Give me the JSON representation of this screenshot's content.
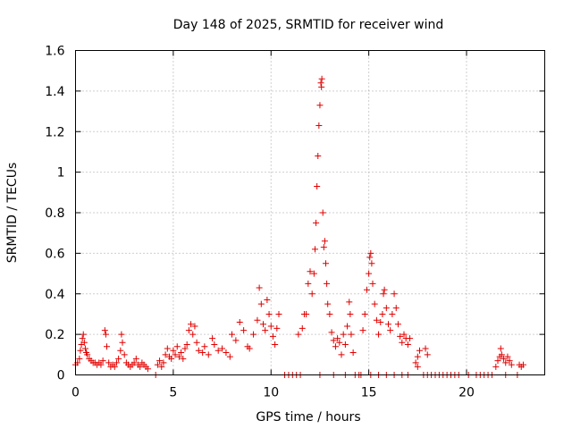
{
  "chart_data": {
    "type": "scatter",
    "title": "Day 148 of 2025, SRMTID for receiver wind",
    "xlabel": "GPS time / hours",
    "ylabel": "SRMTID / TECUs",
    "xlim": [
      0,
      24
    ],
    "ylim": [
      0,
      1.6
    ],
    "xticks": [
      0,
      5,
      10,
      15,
      20
    ],
    "xtick_labels": [
      "0",
      "5",
      "10",
      "15",
      "20"
    ],
    "yticks": [
      0,
      0.2,
      0.4,
      0.6,
      0.8,
      1.0,
      1.2,
      1.4,
      1.6
    ],
    "ytick_labels": [
      "0",
      "0.2",
      "0.4",
      "0.6",
      "0.8",
      "1",
      "1.2",
      "1.4",
      "1.6"
    ],
    "grid": true,
    "marker": "+",
    "color": "#e00000",
    "series": [
      {
        "name": "SRMTID",
        "points": [
          [
            0.0,
            0.05
          ],
          [
            0.1,
            0.06
          ],
          [
            0.2,
            0.08
          ],
          [
            0.25,
            0.12
          ],
          [
            0.3,
            0.15
          ],
          [
            0.35,
            0.18
          ],
          [
            0.4,
            0.2
          ],
          [
            0.45,
            0.16
          ],
          [
            0.5,
            0.13
          ],
          [
            0.55,
            0.11
          ],
          [
            0.6,
            0.1
          ],
          [
            0.7,
            0.08
          ],
          [
            0.8,
            0.07
          ],
          [
            0.9,
            0.06
          ],
          [
            1.0,
            0.06
          ],
          [
            1.1,
            0.05
          ],
          [
            1.2,
            0.06
          ],
          [
            1.3,
            0.05
          ],
          [
            1.4,
            0.07
          ],
          [
            1.5,
            0.22
          ],
          [
            1.55,
            0.2
          ],
          [
            1.6,
            0.14
          ],
          [
            1.7,
            0.06
          ],
          [
            1.8,
            0.04
          ],
          [
            1.9,
            0.05
          ],
          [
            2.0,
            0.04
          ],
          [
            2.1,
            0.06
          ],
          [
            2.2,
            0.08
          ],
          [
            2.3,
            0.12
          ],
          [
            2.35,
            0.2
          ],
          [
            2.4,
            0.16
          ],
          [
            2.5,
            0.1
          ],
          [
            2.6,
            0.06
          ],
          [
            2.7,
            0.05
          ],
          [
            2.8,
            0.04
          ],
          [
            2.9,
            0.05
          ],
          [
            3.0,
            0.06
          ],
          [
            3.1,
            0.08
          ],
          [
            3.2,
            0.05
          ],
          [
            3.3,
            0.04
          ],
          [
            3.4,
            0.06
          ],
          [
            3.5,
            0.05
          ],
          [
            3.6,
            0.04
          ],
          [
            3.7,
            0.03
          ],
          [
            4.1,
            0.0
          ],
          [
            4.2,
            0.05
          ],
          [
            4.3,
            0.07
          ],
          [
            4.4,
            0.04
          ],
          [
            4.5,
            0.06
          ],
          [
            4.6,
            0.1
          ],
          [
            4.7,
            0.13
          ],
          [
            4.8,
            0.09
          ],
          [
            4.9,
            0.08
          ],
          [
            5.0,
            0.12
          ],
          [
            5.1,
            0.1
          ],
          [
            5.2,
            0.14
          ],
          [
            5.3,
            0.09
          ],
          [
            5.4,
            0.11
          ],
          [
            5.5,
            0.08
          ],
          [
            5.6,
            0.13
          ],
          [
            5.7,
            0.15
          ],
          [
            5.8,
            0.22
          ],
          [
            5.9,
            0.25
          ],
          [
            6.0,
            0.2
          ],
          [
            6.1,
            0.24
          ],
          [
            6.2,
            0.16
          ],
          [
            6.3,
            0.12
          ],
          [
            6.5,
            0.11
          ],
          [
            6.6,
            0.14
          ],
          [
            6.8,
            0.1
          ],
          [
            7.0,
            0.18
          ],
          [
            7.1,
            0.15
          ],
          [
            7.3,
            0.12
          ],
          [
            7.5,
            0.13
          ],
          [
            7.7,
            0.11
          ],
          [
            7.9,
            0.09
          ],
          [
            8.0,
            0.2
          ],
          [
            8.2,
            0.17
          ],
          [
            8.4,
            0.26
          ],
          [
            8.6,
            0.22
          ],
          [
            8.8,
            0.14
          ],
          [
            8.9,
            0.13
          ],
          [
            9.1,
            0.2
          ],
          [
            9.3,
            0.27
          ],
          [
            9.4,
            0.43
          ],
          [
            9.5,
            0.35
          ],
          [
            9.6,
            0.25
          ],
          [
            9.7,
            0.22
          ],
          [
            9.8,
            0.37
          ],
          [
            9.9,
            0.3
          ],
          [
            10.0,
            0.24
          ],
          [
            10.1,
            0.19
          ],
          [
            10.2,
            0.15
          ],
          [
            10.3,
            0.23
          ],
          [
            10.4,
            0.3
          ],
          [
            10.7,
            0.0
          ],
          [
            10.9,
            0.0
          ],
          [
            11.1,
            0.0
          ],
          [
            11.3,
            0.0
          ],
          [
            11.5,
            0.0
          ],
          [
            11.4,
            0.2
          ],
          [
            11.6,
            0.23
          ],
          [
            11.7,
            0.3
          ],
          [
            11.8,
            0.3
          ],
          [
            11.9,
            0.45
          ],
          [
            12.0,
            0.51
          ],
          [
            12.1,
            0.4
          ],
          [
            12.2,
            0.5
          ],
          [
            12.25,
            0.62
          ],
          [
            12.3,
            0.75
          ],
          [
            12.35,
            0.93
          ],
          [
            12.4,
            1.08
          ],
          [
            12.45,
            1.23
          ],
          [
            12.5,
            1.33
          ],
          [
            12.55,
            1.44
          ],
          [
            12.6,
            1.46
          ],
          [
            12.58,
            1.42
          ],
          [
            12.65,
            0.8
          ],
          [
            12.7,
            0.63
          ],
          [
            12.75,
            0.66
          ],
          [
            12.8,
            0.55
          ],
          [
            12.85,
            0.45
          ],
          [
            12.9,
            0.35
          ],
          [
            13.0,
            0.3
          ],
          [
            13.1,
            0.21
          ],
          [
            13.2,
            0.17
          ],
          [
            13.3,
            0.14
          ],
          [
            13.4,
            0.18
          ],
          [
            13.5,
            0.16
          ],
          [
            13.6,
            0.1
          ],
          [
            13.7,
            0.2
          ],
          [
            13.8,
            0.15
          ],
          [
            13.9,
            0.24
          ],
          [
            14.0,
            0.36
          ],
          [
            14.05,
            0.3
          ],
          [
            14.1,
            0.2
          ],
          [
            14.2,
            0.11
          ],
          [
            12.5,
            0.0
          ],
          [
            13.2,
            0.0
          ],
          [
            13.8,
            0.0
          ],
          [
            14.3,
            0.0
          ],
          [
            14.5,
            0.0
          ],
          [
            14.6,
            0.0
          ],
          [
            14.7,
            0.22
          ],
          [
            14.8,
            0.3
          ],
          [
            14.9,
            0.42
          ],
          [
            15.0,
            0.5
          ],
          [
            15.05,
            0.58
          ],
          [
            15.1,
            0.6
          ],
          [
            15.15,
            0.55
          ],
          [
            15.2,
            0.45
          ],
          [
            15.3,
            0.35
          ],
          [
            15.4,
            0.27
          ],
          [
            15.5,
            0.2
          ],
          [
            15.6,
            0.26
          ],
          [
            15.7,
            0.3
          ],
          [
            15.75,
            0.4
          ],
          [
            15.8,
            0.42
          ],
          [
            15.9,
            0.33
          ],
          [
            16.0,
            0.25
          ],
          [
            16.1,
            0.22
          ],
          [
            16.2,
            0.3
          ],
          [
            16.3,
            0.4
          ],
          [
            16.4,
            0.33
          ],
          [
            16.5,
            0.25
          ],
          [
            16.6,
            0.19
          ],
          [
            16.7,
            0.16
          ],
          [
            16.8,
            0.2
          ],
          [
            16.9,
            0.18
          ],
          [
            17.0,
            0.15
          ],
          [
            17.1,
            0.18
          ],
          [
            15.1,
            0.0
          ],
          [
            15.5,
            0.0
          ],
          [
            15.9,
            0.0
          ],
          [
            16.3,
            0.0
          ],
          [
            16.7,
            0.0
          ],
          [
            17.0,
            0.0
          ],
          [
            17.4,
            0.06
          ],
          [
            17.5,
            0.09
          ],
          [
            17.6,
            0.12
          ],
          [
            17.5,
            0.04
          ],
          [
            17.9,
            0.13
          ],
          [
            18.0,
            0.1
          ],
          [
            17.8,
            0.0
          ],
          [
            18.0,
            0.0
          ],
          [
            18.2,
            0.0
          ],
          [
            18.4,
            0.0
          ],
          [
            18.6,
            0.0
          ],
          [
            18.8,
            0.0
          ],
          [
            19.0,
            0.0
          ],
          [
            19.2,
            0.0
          ],
          [
            19.4,
            0.0
          ],
          [
            19.6,
            0.0
          ],
          [
            20.1,
            0.0
          ],
          [
            20.5,
            0.0
          ],
          [
            20.7,
            0.0
          ],
          [
            20.9,
            0.0
          ],
          [
            21.1,
            0.0
          ],
          [
            21.3,
            0.0
          ],
          [
            21.5,
            0.04
          ],
          [
            21.6,
            0.07
          ],
          [
            21.7,
            0.09
          ],
          [
            21.75,
            0.13
          ],
          [
            21.8,
            0.1
          ],
          [
            21.9,
            0.08
          ],
          [
            22.0,
            0.06
          ],
          [
            22.1,
            0.09
          ],
          [
            22.2,
            0.07
          ],
          [
            22.3,
            0.05
          ],
          [
            22.0,
            0.0
          ],
          [
            22.6,
            0.0
          ],
          [
            22.7,
            0.05
          ],
          [
            22.8,
            0.04
          ],
          [
            22.9,
            0.05
          ]
        ]
      }
    ]
  }
}
